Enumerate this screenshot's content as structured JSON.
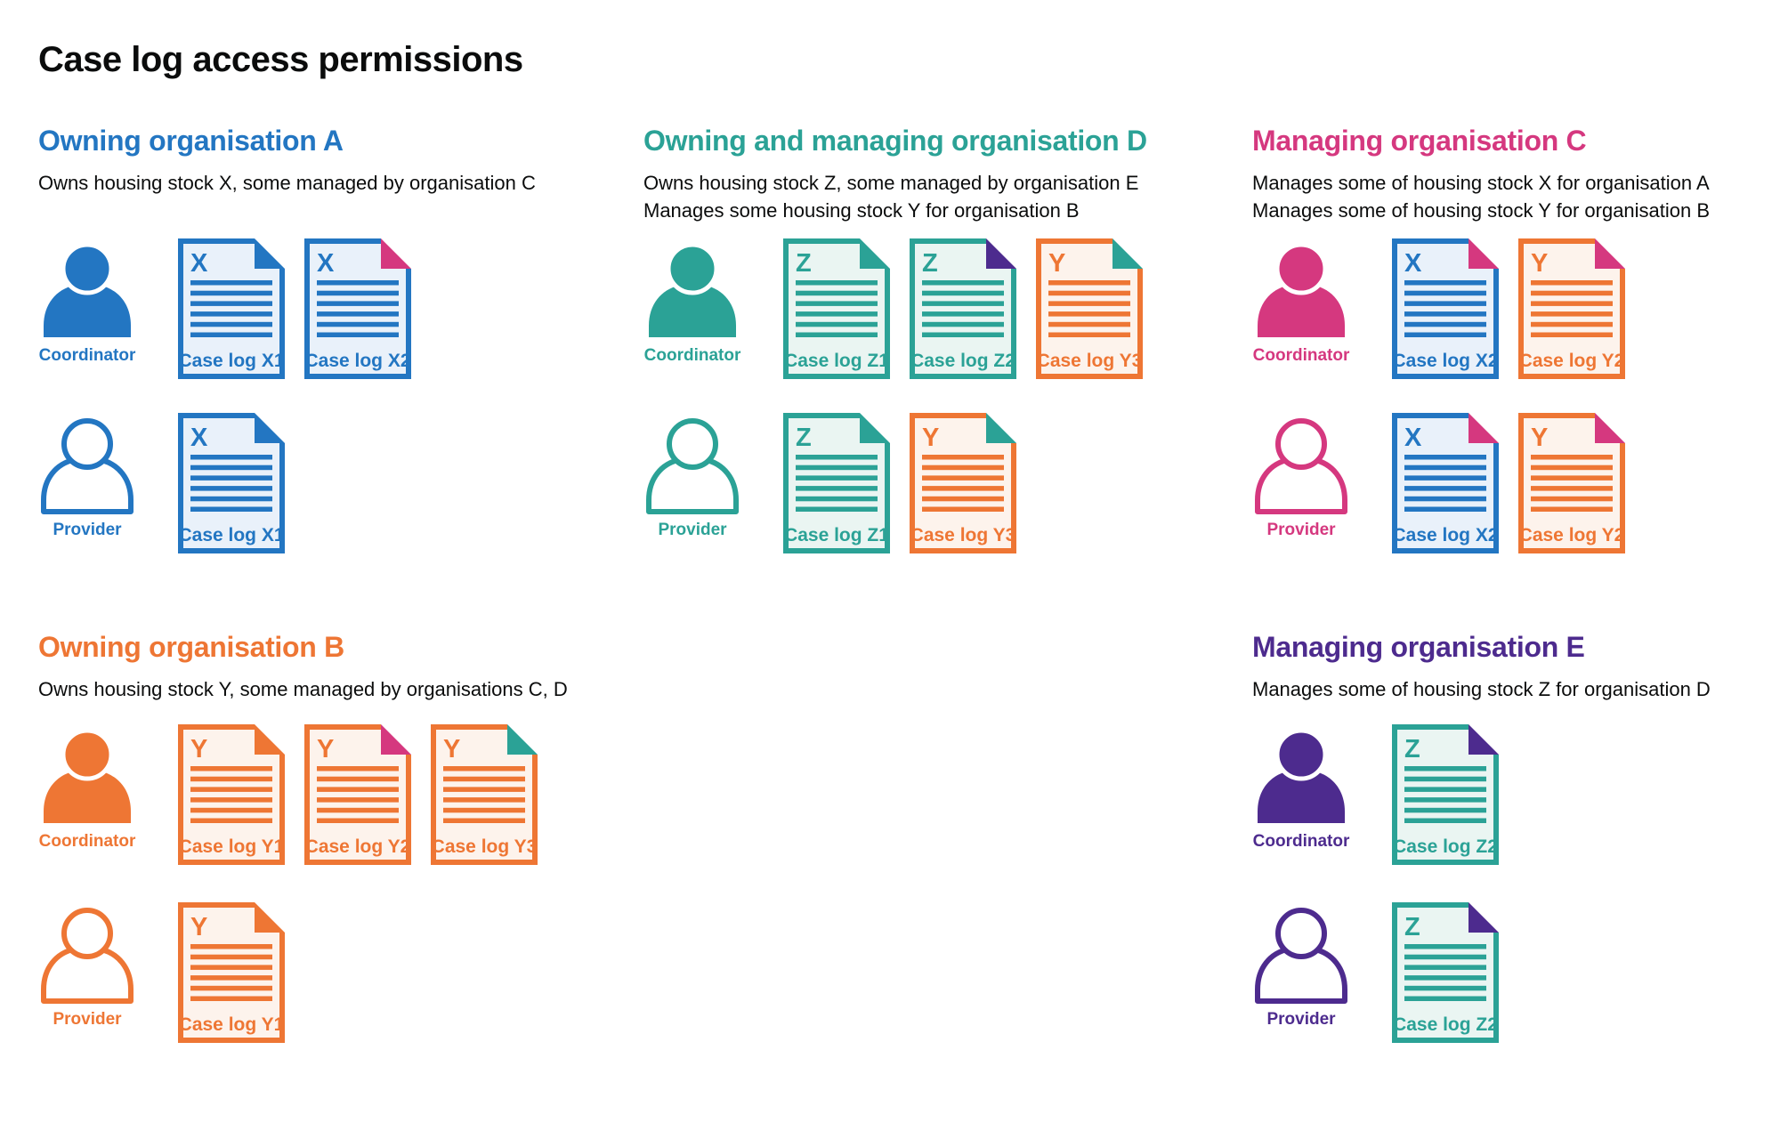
{
  "page_title": "Case log access permissions",
  "palette": {
    "blue": "#2376c2",
    "teal": "#2ba296",
    "pink": "#d5387f",
    "orange": "#ee7634",
    "purple": "#4d2b8e",
    "ink": "#0b0c0c"
  },
  "doc_fills": {
    "blue": "#e9f1fa",
    "teal": "#eaf5f2",
    "orange": "#fdf3ec"
  },
  "sections": [
    {
      "id": "org-a",
      "title": "Owning organisation A",
      "color": "blue",
      "band": 1,
      "column": 1,
      "description_lines": [
        "Owns housing stock X, some managed by organisation C"
      ],
      "rows": [
        {
          "role_key": "coordinator",
          "role": "Coordinator",
          "docs": [
            {
              "letter": "X",
              "label": "Case log X1",
              "color": "blue",
              "fold": "blue"
            },
            {
              "letter": "X",
              "label": "Case log X2",
              "color": "blue",
              "fold": "pink"
            }
          ]
        },
        {
          "role_key": "provider",
          "role": "Provider",
          "docs": [
            {
              "letter": "X",
              "label": "Case log X1",
              "color": "blue",
              "fold": "blue"
            }
          ]
        }
      ]
    },
    {
      "id": "org-d",
      "title": "Owning and managing organisation D",
      "color": "teal",
      "band": 1,
      "column": 2,
      "description_lines": [
        "Owns housing stock Z, some managed by organisation E",
        "Manages some housing stock Y for organisation B"
      ],
      "rows": [
        {
          "role_key": "coordinator",
          "role": "Coordinator",
          "docs": [
            {
              "letter": "Z",
              "label": "Case log Z1",
              "color": "teal",
              "fold": "teal"
            },
            {
              "letter": "Z",
              "label": "Case log Z2",
              "color": "teal",
              "fold": "purple"
            },
            {
              "letter": "Y",
              "label": "Case log Y3",
              "color": "orange",
              "fold": "teal"
            }
          ]
        },
        {
          "role_key": "provider",
          "role": "Provider",
          "docs": [
            {
              "letter": "Z",
              "label": "Case log Z1",
              "color": "teal",
              "fold": "teal"
            },
            {
              "letter": "Y",
              "label": "Case log Y3",
              "color": "orange",
              "fold": "teal"
            }
          ]
        }
      ]
    },
    {
      "id": "org-c",
      "title": "Managing organisation C",
      "color": "pink",
      "band": 1,
      "column": 3,
      "description_lines": [
        "Manages some of housing stock X for organisation A",
        "Manages some of housing stock Y for organisation B"
      ],
      "rows": [
        {
          "role_key": "coordinator",
          "role": "Coordinator",
          "docs": [
            {
              "letter": "X",
              "label": "Case log X2",
              "color": "blue",
              "fold": "pink"
            },
            {
              "letter": "Y",
              "label": "Case log Y2",
              "color": "orange",
              "fold": "pink"
            }
          ]
        },
        {
          "role_key": "provider",
          "role": "Provider",
          "docs": [
            {
              "letter": "X",
              "label": "Case log X2",
              "color": "blue",
              "fold": "pink"
            },
            {
              "letter": "Y",
              "label": "Case log Y2",
              "color": "orange",
              "fold": "pink"
            }
          ]
        }
      ]
    },
    {
      "id": "org-b",
      "title": "Owning organisation B",
      "color": "orange",
      "band": 2,
      "column": 1,
      "description_lines": [
        "Owns housing stock Y, some managed by organisations C, D"
      ],
      "rows": [
        {
          "role_key": "coordinator",
          "role": "Coordinator",
          "docs": [
            {
              "letter": "Y",
              "label": "Case log Y1",
              "color": "orange",
              "fold": "orange"
            },
            {
              "letter": "Y",
              "label": "Case log Y2",
              "color": "orange",
              "fold": "pink"
            },
            {
              "letter": "Y",
              "label": "Case log Y3",
              "color": "orange",
              "fold": "teal"
            }
          ]
        },
        {
          "role_key": "provider",
          "role": "Provider",
          "docs": [
            {
              "letter": "Y",
              "label": "Case log Y1",
              "color": "orange",
              "fold": "orange"
            }
          ]
        }
      ]
    },
    {
      "id": "org-e",
      "title": "Managing organisation E",
      "color": "purple",
      "band": 2,
      "column": 3,
      "description_lines": [
        "Manages some of housing stock Z for organisation D"
      ],
      "rows": [
        {
          "role_key": "coordinator",
          "role": "Coordinator",
          "docs": [
            {
              "letter": "Z",
              "label": "Case log Z2",
              "color": "teal",
              "fold": "purple"
            }
          ]
        },
        {
          "role_key": "provider",
          "role": "Provider",
          "docs": [
            {
              "letter": "Z",
              "label": "Case log Z2",
              "color": "teal",
              "fold": "purple"
            }
          ]
        }
      ]
    }
  ]
}
